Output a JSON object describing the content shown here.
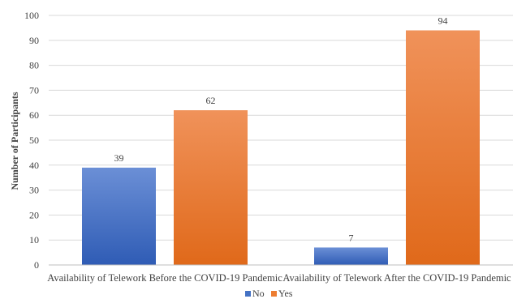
{
  "chart_data": {
    "type": "bar",
    "title": "",
    "xlabel": "",
    "ylabel": "Number of Participants",
    "ylim": [
      0,
      100
    ],
    "yticks": [
      0,
      10,
      20,
      30,
      40,
      50,
      60,
      70,
      80,
      90,
      100
    ],
    "grid": true,
    "legend_position": "bottom",
    "categories": [
      "Availability of Telework Before the COVID-19 Pandemic",
      "Availability of Telework After the COVID-19 Pandemic"
    ],
    "series": [
      {
        "name": "No",
        "values": [
          39,
          7
        ],
        "color": "#4472c4"
      },
      {
        "name": "Yes",
        "values": [
          62,
          94
        ],
        "color": "#ed7d31"
      }
    ]
  }
}
